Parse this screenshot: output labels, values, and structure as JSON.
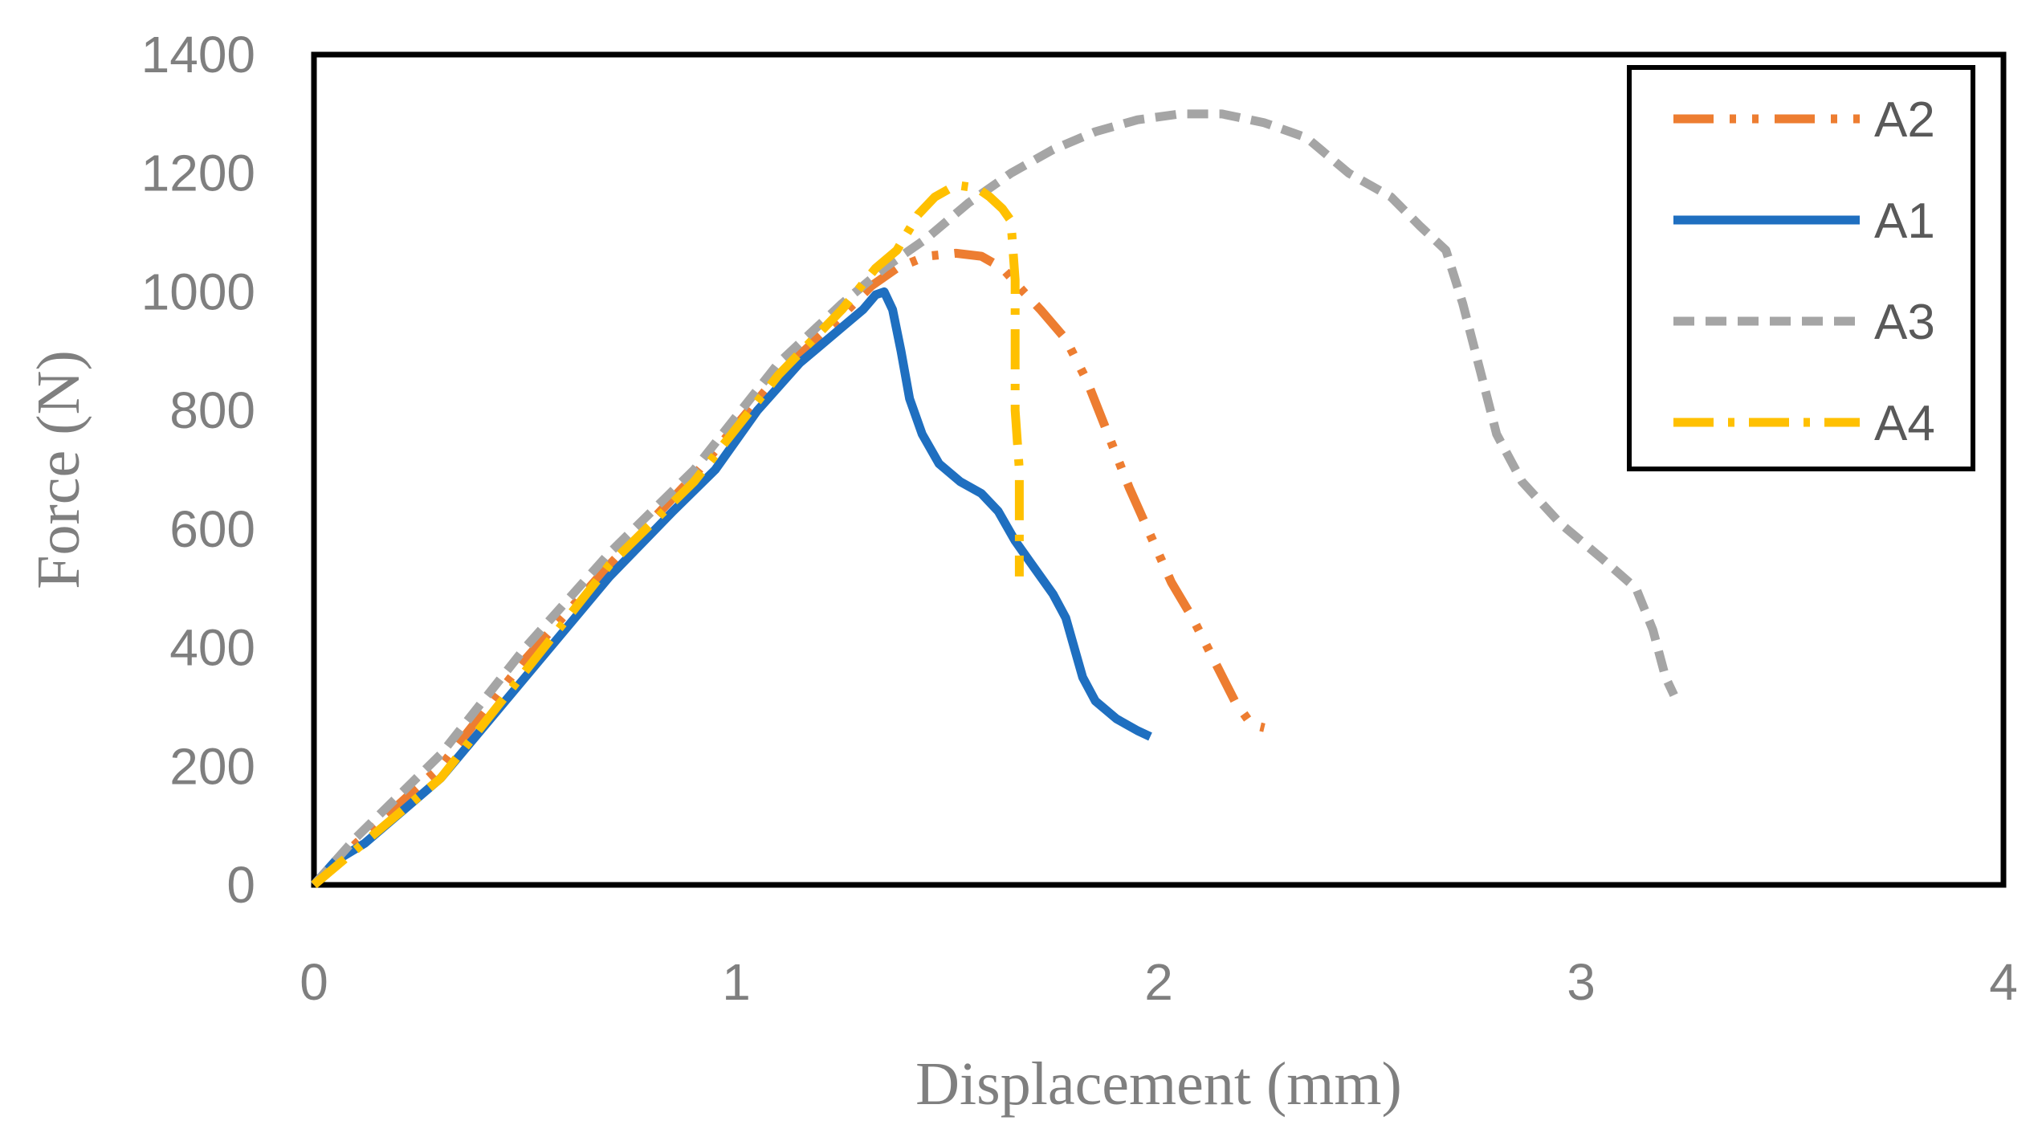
{
  "chart_data": {
    "type": "line",
    "xlabel": "Displacement (mm)",
    "ylabel": "Force (N)",
    "xlim": [
      0,
      4
    ],
    "ylim": [
      0,
      1400
    ],
    "xticks": [
      "0",
      "1",
      "2",
      "3",
      "4"
    ],
    "yticks": [
      "0",
      "200",
      "400",
      "600",
      "800",
      "1000",
      "1200",
      "1400"
    ],
    "grid": false,
    "legend_position": "top-right",
    "series": [
      {
        "name": "A2",
        "color": "#ED7D31",
        "dash": "dash-dot-dot",
        "points": [
          [
            0,
            0
          ],
          [
            0.1,
            70
          ],
          [
            0.3,
            200
          ],
          [
            0.5,
            380
          ],
          [
            0.7,
            540
          ],
          [
            0.9,
            690
          ],
          [
            1.1,
            860
          ],
          [
            1.25,
            960
          ],
          [
            1.32,
            1010
          ],
          [
            1.38,
            1040
          ],
          [
            1.45,
            1060
          ],
          [
            1.52,
            1065
          ],
          [
            1.58,
            1060
          ],
          [
            1.63,
            1040
          ],
          [
            1.68,
            1000
          ],
          [
            1.72,
            970
          ],
          [
            1.78,
            920
          ],
          [
            1.83,
            850
          ],
          [
            1.88,
            760
          ],
          [
            1.93,
            670
          ],
          [
            1.98,
            590
          ],
          [
            2.03,
            510
          ],
          [
            2.08,
            450
          ],
          [
            2.13,
            380
          ],
          [
            2.18,
            310
          ],
          [
            2.22,
            270
          ],
          [
            2.25,
            265
          ]
        ]
      },
      {
        "name": "A1",
        "color": "#1F6FC0",
        "dash": "solid",
        "points": [
          [
            0,
            0
          ],
          [
            0.05,
            40
          ],
          [
            0.12,
            70
          ],
          [
            0.3,
            180
          ],
          [
            0.5,
            350
          ],
          [
            0.7,
            520
          ],
          [
            0.85,
            630
          ],
          [
            0.95,
            700
          ],
          [
            1.05,
            800
          ],
          [
            1.15,
            880
          ],
          [
            1.25,
            940
          ],
          [
            1.3,
            970
          ],
          [
            1.33,
            995
          ],
          [
            1.35,
            1000
          ],
          [
            1.37,
            970
          ],
          [
            1.39,
            900
          ],
          [
            1.41,
            820
          ],
          [
            1.44,
            760
          ],
          [
            1.48,
            710
          ],
          [
            1.53,
            680
          ],
          [
            1.58,
            660
          ],
          [
            1.62,
            630
          ],
          [
            1.66,
            580
          ],
          [
            1.7,
            540
          ],
          [
            1.75,
            490
          ],
          [
            1.78,
            450
          ],
          [
            1.8,
            400
          ],
          [
            1.82,
            350
          ],
          [
            1.85,
            310
          ],
          [
            1.9,
            280
          ],
          [
            1.95,
            260
          ],
          [
            1.98,
            250
          ]
        ]
      },
      {
        "name": "A3",
        "color": "#A5A5A5",
        "dash": "dashed",
        "points": [
          [
            0,
            0
          ],
          [
            0.1,
            80
          ],
          [
            0.3,
            220
          ],
          [
            0.5,
            400
          ],
          [
            0.7,
            560
          ],
          [
            0.9,
            700
          ],
          [
            1.1,
            880
          ],
          [
            1.25,
            980
          ],
          [
            1.35,
            1040
          ],
          [
            1.45,
            1090
          ],
          [
            1.55,
            1150
          ],
          [
            1.65,
            1200
          ],
          [
            1.75,
            1240
          ],
          [
            1.85,
            1270
          ],
          [
            1.95,
            1290
          ],
          [
            2.05,
            1300
          ],
          [
            2.15,
            1300
          ],
          [
            2.25,
            1285
          ],
          [
            2.35,
            1260
          ],
          [
            2.45,
            1200
          ],
          [
            2.55,
            1160
          ],
          [
            2.62,
            1110
          ],
          [
            2.68,
            1070
          ],
          [
            2.72,
            980
          ],
          [
            2.76,
            870
          ],
          [
            2.8,
            760
          ],
          [
            2.86,
            680
          ],
          [
            2.95,
            610
          ],
          [
            3.05,
            550
          ],
          [
            3.13,
            500
          ],
          [
            3.17,
            430
          ],
          [
            3.2,
            350
          ],
          [
            3.22,
            320
          ]
        ]
      },
      {
        "name": "A4",
        "color": "#FFC000",
        "dash": "dash-dot",
        "points": [
          [
            0,
            0
          ],
          [
            0.1,
            60
          ],
          [
            0.3,
            180
          ],
          [
            0.5,
            360
          ],
          [
            0.7,
            540
          ],
          [
            0.9,
            680
          ],
          [
            1.1,
            860
          ],
          [
            1.25,
            970
          ],
          [
            1.33,
            1040
          ],
          [
            1.38,
            1070
          ],
          [
            1.43,
            1130
          ],
          [
            1.47,
            1160
          ],
          [
            1.52,
            1180
          ],
          [
            1.57,
            1175
          ],
          [
            1.6,
            1160
          ],
          [
            1.63,
            1140
          ],
          [
            1.65,
            1120
          ],
          [
            1.66,
            1020
          ],
          [
            1.66,
            900
          ],
          [
            1.66,
            800
          ],
          [
            1.67,
            700
          ],
          [
            1.67,
            600
          ],
          [
            1.67,
            520
          ]
        ]
      }
    ]
  }
}
